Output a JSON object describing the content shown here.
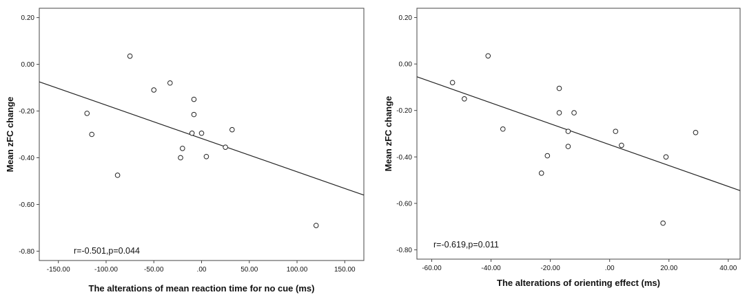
{
  "chart_data": [
    {
      "type": "scatter",
      "xlabel": "The alterations of mean reaction time for no cue (ms)",
      "ylabel": "Mean zFC change",
      "annotation": "r=-0.501,p=0.044",
      "xlim": [
        -170,
        170
      ],
      "ylim": [
        -0.84,
        0.24
      ],
      "x_ticks": [
        -150,
        -100,
        -50,
        0,
        50,
        100,
        150
      ],
      "x_tick_labels": [
        "-150.00",
        "-100.00",
        "-50.00",
        ".00",
        "50.00",
        "100.00",
        "150.00"
      ],
      "y_ticks": [
        0.2,
        0.0,
        -0.2,
        -0.4,
        -0.6,
        -0.8
      ],
      "y_tick_labels": [
        "0.20",
        "0.00",
        "-0.20",
        "-0.40",
        "-0.60",
        "-0.80"
      ],
      "fit_line": [
        [
          -170,
          -0.075
        ],
        [
          170,
          -0.56
        ]
      ],
      "points": [
        {
          "x": -75,
          "y": 0.035
        },
        {
          "x": -120,
          "y": -0.21
        },
        {
          "x": -115,
          "y": -0.3
        },
        {
          "x": -88,
          "y": -0.475
        },
        {
          "x": -50,
          "y": -0.11
        },
        {
          "x": -33,
          "y": -0.08
        },
        {
          "x": -20,
          "y": -0.36
        },
        {
          "x": -22,
          "y": -0.4
        },
        {
          "x": -8,
          "y": -0.15
        },
        {
          "x": -8,
          "y": -0.215
        },
        {
          "x": -10,
          "y": -0.295
        },
        {
          "x": 0,
          "y": -0.295
        },
        {
          "x": 5,
          "y": -0.395
        },
        {
          "x": 25,
          "y": -0.355
        },
        {
          "x": 32,
          "y": -0.28
        },
        {
          "x": 120,
          "y": -0.69
        }
      ]
    },
    {
      "type": "scatter",
      "xlabel": "The alterations of orienting effect (ms)",
      "ylabel": "Mean zFC change",
      "annotation": "r=-0.619,p=0.011",
      "xlim": [
        -65,
        44
      ],
      "ylim": [
        -0.84,
        0.24
      ],
      "x_ticks": [
        -60,
        -40,
        -20,
        0,
        20,
        40
      ],
      "x_tick_labels": [
        "-60.00",
        "-40.00",
        "-20.00",
        ".00",
        "20.00",
        "40.00"
      ],
      "y_ticks": [
        0.2,
        0.0,
        -0.2,
        -0.4,
        -0.6,
        -0.8
      ],
      "y_tick_labels": [
        "0.20",
        "0.00",
        "-0.20",
        "-0.40",
        "-0.60",
        "-0.80"
      ],
      "fit_line": [
        [
          -65,
          -0.055
        ],
        [
          44,
          -0.545
        ]
      ],
      "points": [
        {
          "x": -41,
          "y": 0.035
        },
        {
          "x": -53,
          "y": -0.08
        },
        {
          "x": -49,
          "y": -0.15
        },
        {
          "x": -36,
          "y": -0.28
        },
        {
          "x": -17,
          "y": -0.105
        },
        {
          "x": -17,
          "y": -0.21
        },
        {
          "x": -12,
          "y": -0.21
        },
        {
          "x": -14,
          "y": -0.29
        },
        {
          "x": -14,
          "y": -0.355
        },
        {
          "x": -21,
          "y": -0.395
        },
        {
          "x": -23,
          "y": -0.47
        },
        {
          "x": 2,
          "y": -0.29
        },
        {
          "x": 4,
          "y": -0.35
        },
        {
          "x": 19,
          "y": -0.4
        },
        {
          "x": 29,
          "y": -0.295
        },
        {
          "x": 18,
          "y": -0.685
        }
      ]
    }
  ]
}
